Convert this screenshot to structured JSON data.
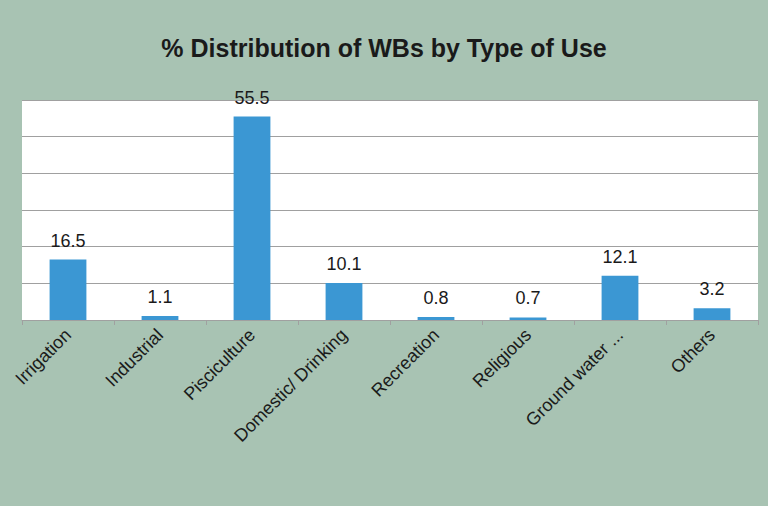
{
  "chart_data": {
    "type": "bar",
    "title": "% Distribution of WBs by Type of Use",
    "categories": [
      "Irrigation",
      "Industrial",
      "Pisciculture",
      "Domestic/ Drinking",
      "Recreation",
      "Religious",
      "Ground water ...",
      "Others"
    ],
    "values": [
      16.5,
      1.1,
      55.5,
      10.1,
      0.8,
      0.7,
      12.1,
      3.2
    ],
    "color": "#3b97d3",
    "ylim": [
      0,
      60
    ],
    "yticks": [
      0,
      10,
      20,
      30,
      40,
      50,
      60
    ],
    "grid": true,
    "data_labels": true,
    "tick_labels": "x"
  }
}
